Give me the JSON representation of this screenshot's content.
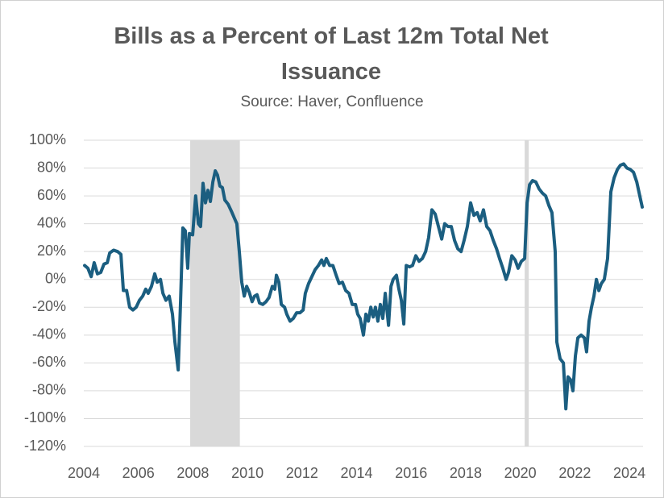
{
  "chart_data": {
    "type": "line",
    "title": "Bills as a Percent of Last 12m Total Net Issuance",
    "subtitle": "Source: Haver, Confluence",
    "xlim": [
      2004,
      2024.5
    ],
    "xticks": [
      2004,
      2006,
      2008,
      2010,
      2012,
      2014,
      2016,
      2018,
      2020,
      2022,
      2024
    ],
    "ylim": [
      -120,
      100
    ],
    "yticks": [
      {
        "value": -120,
        "label": "-120%"
      },
      {
        "value": -100,
        "label": "-100%"
      },
      {
        "value": -80,
        "label": "-80%"
      },
      {
        "value": -60,
        "label": "-60%"
      },
      {
        "value": -40,
        "label": "-40%"
      },
      {
        "value": -20,
        "label": "-20%"
      },
      {
        "value": 0,
        "label": "0%"
      },
      {
        "value": 20,
        "label": "20%"
      },
      {
        "value": 40,
        "label": "40%"
      },
      {
        "value": 60,
        "label": "60%"
      },
      {
        "value": 80,
        "label": "80%"
      },
      {
        "value": 100,
        "label": "100%"
      }
    ],
    "grid": true,
    "shaded_regions": [
      [
        2007.9,
        2009.72
      ],
      [
        2020.16,
        2020.31
      ]
    ],
    "shade_color": "#d9d9d9",
    "x": [
      2004.03,
      2004.15,
      2004.27,
      2004.38,
      2004.5,
      2004.62,
      2004.74,
      2004.86,
      2004.95,
      2005.09,
      2005.24,
      2005.36,
      2005.45,
      2005.57,
      2005.68,
      2005.8,
      2005.92,
      2006.04,
      2006.16,
      2006.27,
      2006.36,
      2006.48,
      2006.6,
      2006.69,
      2006.81,
      2006.9,
      2007.01,
      2007.13,
      2007.25,
      2007.34,
      2007.46,
      2007.54,
      2007.63,
      2007.72,
      2007.81,
      2007.87,
      2007.99,
      2008.1,
      2008.2,
      2008.28,
      2008.37,
      2008.46,
      2008.55,
      2008.64,
      2008.73,
      2008.82,
      2008.9,
      2008.99,
      2009.08,
      2009.17,
      2009.29,
      2009.41,
      2009.52,
      2009.61,
      2009.7,
      2009.79,
      2009.88,
      2009.97,
      2010.06,
      2010.17,
      2010.26,
      2010.35,
      2010.44,
      2010.56,
      2010.68,
      2010.79,
      2010.91,
      2011.0,
      2011.06,
      2011.15,
      2011.24,
      2011.36,
      2011.44,
      2011.56,
      2011.68,
      2011.8,
      2011.92,
      2012.04,
      2012.12,
      2012.24,
      2012.36,
      2012.48,
      2012.6,
      2012.72,
      2012.8,
      2012.89,
      2013.01,
      2013.13,
      2013.25,
      2013.36,
      2013.48,
      2013.6,
      2013.72,
      2013.84,
      2013.96,
      2014.04,
      2014.13,
      2014.25,
      2014.34,
      2014.43,
      2014.52,
      2014.61,
      2014.69,
      2014.78,
      2014.87,
      2014.96,
      2015.05,
      2015.17,
      2015.26,
      2015.34,
      2015.46,
      2015.55,
      2015.64,
      2015.73,
      2015.82,
      2015.94,
      2016.05,
      2016.17,
      2016.29,
      2016.41,
      2016.53,
      2016.64,
      2016.76,
      2016.88,
      2017.0,
      2017.12,
      2017.23,
      2017.35,
      2017.47,
      2017.59,
      2017.71,
      2017.83,
      2017.94,
      2018.06,
      2018.18,
      2018.3,
      2018.42,
      2018.53,
      2018.65,
      2018.77,
      2018.89,
      2019.01,
      2019.13,
      2019.24,
      2019.36,
      2019.48,
      2019.57,
      2019.69,
      2019.81,
      2019.92,
      2020.04,
      2020.16,
      2020.25,
      2020.34,
      2020.45,
      2020.57,
      2020.69,
      2020.81,
      2020.93,
      2021.05,
      2021.16,
      2021.28,
      2021.34,
      2021.46,
      2021.58,
      2021.67,
      2021.75,
      2021.84,
      2021.93,
      2022.02,
      2022.11,
      2022.23,
      2022.35,
      2022.43,
      2022.52,
      2022.61,
      2022.7,
      2022.79,
      2022.88,
      2022.97,
      2023.08,
      2023.2,
      2023.32,
      2023.44,
      2023.56,
      2023.67,
      2023.79,
      2023.91,
      2024.03,
      2024.15,
      2024.27,
      2024.38,
      2024.47
    ],
    "series": [
      {
        "name": "Bills as a Percent of Last 12m Total Net Issuance",
        "color": "#1b5e80",
        "values": [
          10,
          8,
          2,
          12,
          4,
          5,
          11,
          12,
          19,
          21,
          20,
          18,
          -8,
          -8,
          -20,
          -22,
          -20,
          -15,
          -12,
          -7,
          -10,
          -5,
          4,
          -2,
          0,
          -10,
          -15,
          -12,
          -25,
          -45,
          -65,
          -20,
          37,
          35,
          8,
          33,
          32,
          60,
          40,
          38,
          69,
          55,
          64,
          56,
          70,
          78,
          75,
          67,
          66,
          57,
          54,
          49,
          44,
          40,
          20,
          -2,
          -12,
          -5,
          -9,
          -16,
          -12,
          -11,
          -17,
          -18,
          -16,
          -13,
          -5,
          -7,
          3,
          -2,
          -18,
          -20,
          -25,
          -30,
          -28,
          -24,
          -24,
          -22,
          -10,
          -3,
          2,
          7,
          10,
          14,
          10,
          15,
          10,
          10,
          3,
          -3,
          -2,
          -8,
          -10,
          -18,
          -18,
          -25,
          -28,
          -40,
          -25,
          -30,
          -20,
          -27,
          -20,
          -30,
          -18,
          -28,
          -10,
          -33,
          -5,
          0,
          3,
          -7,
          -15,
          -32,
          10,
          9,
          10,
          17,
          13,
          15,
          20,
          30,
          50,
          47,
          38,
          29,
          40,
          38,
          38,
          28,
          22,
          20,
          28,
          38,
          55,
          46,
          48,
          42,
          50,
          38,
          35,
          28,
          22,
          15,
          8,
          0,
          5,
          17,
          14,
          8,
          13,
          15,
          55,
          68,
          71,
          70,
          65,
          62,
          60,
          53,
          48,
          20,
          -45,
          -57,
          -60,
          -93,
          -70,
          -72,
          -80,
          -55,
          -42,
          -40,
          -42,
          -52,
          -30,
          -20,
          -12,
          0,
          -8,
          -3,
          0,
          15,
          63,
          73,
          79,
          82,
          83,
          80,
          79,
          77,
          70,
          60,
          52
        ]
      }
    ]
  }
}
